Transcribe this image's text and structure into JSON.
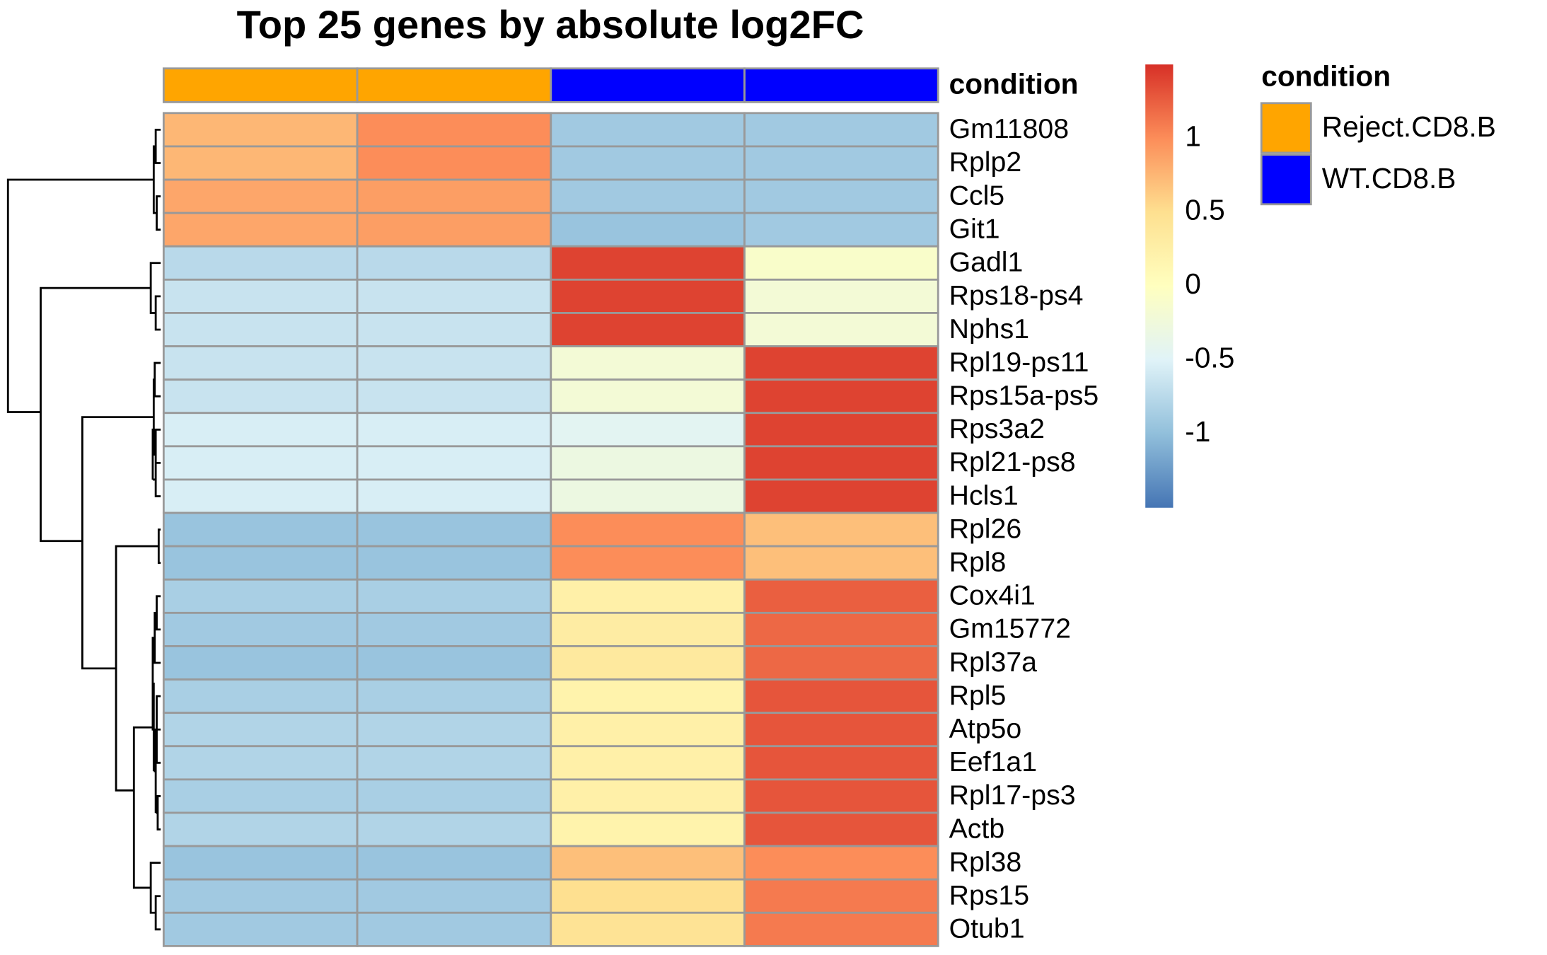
{
  "chart_data": {
    "type": "heatmap",
    "title": "Top 25 genes by absolute log2FC",
    "annotation_label": "condition",
    "legend_title": "condition",
    "legend": [
      {
        "name": "Reject.CD8.B",
        "color": "#FFA500"
      },
      {
        "name": "WT.CD8.B",
        "color": "#0000FF"
      }
    ],
    "column_colors": [
      "#FFA500",
      "#FFA500",
      "#0000FF",
      "#0000FF"
    ],
    "categories": [
      "Gm11808",
      "Rplp2",
      "Ccl5",
      "Git1",
      "Gadl1",
      "Rps18-ps4",
      "Nphs1",
      "Rpl19-ps11",
      "Rps15a-ps5",
      "Rps3a2",
      "Rpl21-ps8",
      "Hcls1",
      "Rpl26",
      "Rpl8",
      "Cox4i1",
      "Gm15772",
      "Rpl37a",
      "Rpl5",
      "Atp5o",
      "Eef1a1",
      "Rpl17-ps3",
      "Actb",
      "Rpl38",
      "Rps15",
      "Otub1"
    ],
    "values": [
      [
        0.75,
        1.0,
        -0.9,
        -0.9
      ],
      [
        0.75,
        1.0,
        -0.9,
        -0.9
      ],
      [
        0.85,
        0.9,
        -0.9,
        -0.9
      ],
      [
        0.85,
        0.9,
        -0.95,
        -0.9
      ],
      [
        -0.75,
        -0.75,
        1.4,
        -0.1
      ],
      [
        -0.65,
        -0.65,
        1.4,
        -0.2
      ],
      [
        -0.65,
        -0.65,
        1.4,
        -0.2
      ],
      [
        -0.65,
        -0.65,
        -0.2,
        1.4
      ],
      [
        -0.65,
        -0.65,
        -0.2,
        1.4
      ],
      [
        -0.55,
        -0.55,
        -0.45,
        1.4
      ],
      [
        -0.55,
        -0.55,
        -0.3,
        1.4
      ],
      [
        -0.55,
        -0.55,
        -0.3,
        1.4
      ],
      [
        -0.95,
        -0.95,
        1.0,
        0.7
      ],
      [
        -0.95,
        -0.95,
        1.0,
        0.7
      ],
      [
        -0.85,
        -0.85,
        0.25,
        1.25
      ],
      [
        -0.9,
        -0.9,
        0.3,
        1.2
      ],
      [
        -0.95,
        -0.95,
        0.35,
        1.2
      ],
      [
        -0.85,
        -0.85,
        0.2,
        1.3
      ],
      [
        -0.8,
        -0.8,
        0.25,
        1.3
      ],
      [
        -0.8,
        -0.8,
        0.25,
        1.3
      ],
      [
        -0.85,
        -0.85,
        0.25,
        1.3
      ],
      [
        -0.8,
        -0.8,
        0.2,
        1.3
      ],
      [
        -0.95,
        -0.95,
        0.7,
        1.0
      ],
      [
        -0.9,
        -0.9,
        0.5,
        1.1
      ],
      [
        -0.9,
        -0.9,
        0.45,
        1.1
      ]
    ],
    "colorscale": [
      "#4575B4",
      "#91BFDB",
      "#E0F3F8",
      "#FFFFBF",
      "#FEE090",
      "#FC8D59",
      "#D73027"
    ],
    "zlim": [
      -1.5,
      1.5
    ],
    "zticks": [
      -1,
      -0.5,
      0,
      0.5,
      1
    ],
    "cell_border": "#999999"
  }
}
